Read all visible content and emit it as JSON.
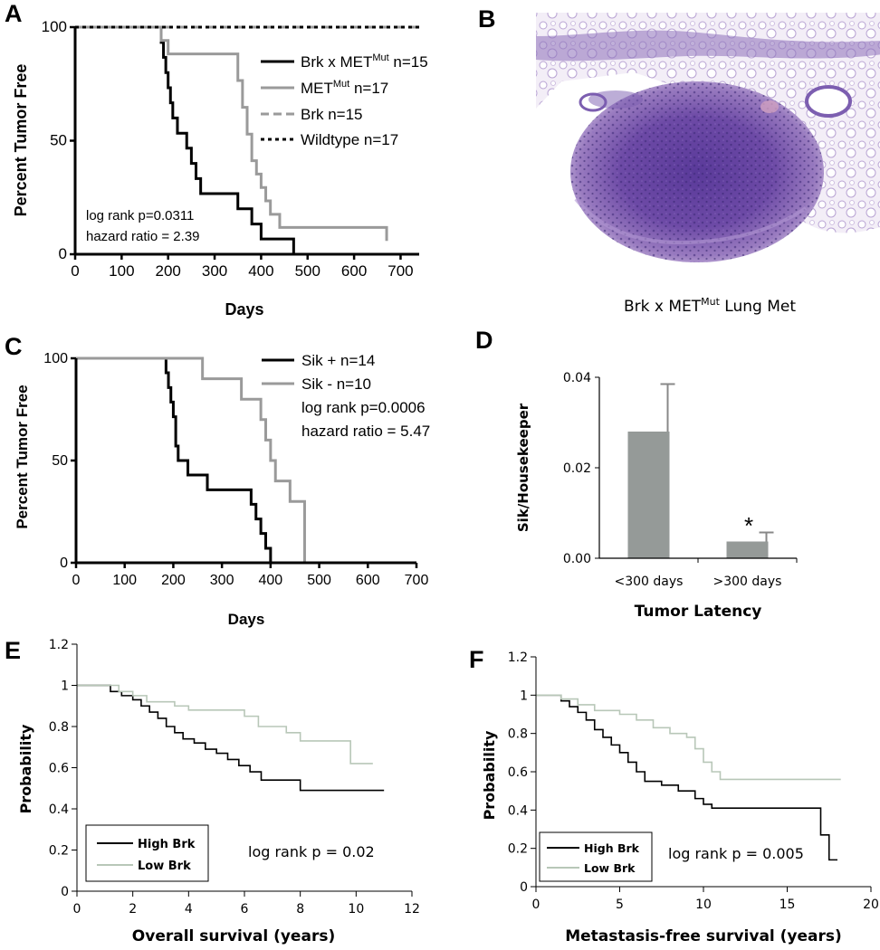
{
  "panel_letters": {
    "a": "A",
    "b": "B",
    "c": "C",
    "d": "D",
    "e": "E",
    "f": "F"
  },
  "colors": {
    "black": "#000000",
    "gray": "#9a9a9a",
    "light_gray": "#b8c7b8",
    "bar": "#959a98"
  },
  "panel_b": {
    "caption_main": "Brk x MET",
    "caption_sup": "Mut",
    "caption_tail": " Lung Met",
    "image_alt": "H&E stained lung section with metastatic tumor"
  },
  "chart_data": [
    {
      "id": "A",
      "type": "line",
      "step": true,
      "xlabel": "Days",
      "ylabel": "Percent Tumor Free",
      "xlim": [
        0,
        740
      ],
      "ylim": [
        0,
        100
      ],
      "xticks": [
        "0",
        "100",
        "200",
        "300",
        "400",
        "500",
        "600",
        "700"
      ],
      "yticks": [
        "0",
        "50",
        "100"
      ],
      "annotations": [
        "log rank p=0.0311",
        "hazard ratio = 2.39"
      ],
      "series": [
        {
          "name": "Brk x MET",
          "name_sup": "Mut",
          "name_tail": " n=15",
          "color": "#000000",
          "dash": "solid",
          "x": [
            0,
            185,
            190,
            195,
            200,
            205,
            210,
            220,
            240,
            250,
            260,
            270,
            290,
            350,
            380,
            400,
            470,
            470
          ],
          "y": [
            100,
            93.3,
            86.7,
            80,
            73.3,
            66.7,
            60,
            53.3,
            46.7,
            40,
            33.3,
            26.7,
            26.7,
            20,
            13.3,
            6.7,
            6.7,
            0
          ]
        },
        {
          "name": "MET",
          "name_sup": "Mut",
          "name_tail": " n=17",
          "color": "#9a9a9a",
          "dash": "solid",
          "x": [
            0,
            185,
            200,
            310,
            350,
            360,
            370,
            380,
            390,
            400,
            410,
            420,
            440,
            670
          ],
          "y": [
            100,
            94.1,
            88.2,
            88.2,
            76.5,
            64.7,
            52.9,
            41.2,
            35.3,
            29.4,
            23.5,
            17.6,
            11.8,
            5.9
          ]
        },
        {
          "name": "Brk n=15",
          "name_sup": "",
          "name_tail": "",
          "color": "#9a9a9a",
          "dash": "dash",
          "x": [
            0,
            740
          ],
          "y": [
            100,
            100
          ]
        },
        {
          "name": "Wildtype n=17",
          "name_sup": "",
          "name_tail": "",
          "color": "#000000",
          "dash": "dot",
          "x": [
            0,
            740
          ],
          "y": [
            100,
            100
          ]
        }
      ]
    },
    {
      "id": "C",
      "type": "line",
      "step": true,
      "xlabel": "Days",
      "ylabel": "Percent Tumor Free",
      "xlim": [
        0,
        700
      ],
      "ylim": [
        0,
        100
      ],
      "xticks": [
        "0",
        "100",
        "200",
        "300",
        "400",
        "500",
        "600",
        "700"
      ],
      "yticks": [
        "0",
        "50",
        "100"
      ],
      "annotations": [
        "log rank p=0.0006",
        "hazard ratio = 5.47"
      ],
      "series": [
        {
          "name": "Sik + n=14",
          "color": "#000000",
          "dash": "solid",
          "x": [
            0,
            185,
            190,
            195,
            200,
            205,
            210,
            230,
            270,
            360,
            370,
            380,
            390,
            400,
            400
          ],
          "y": [
            100,
            92.9,
            85.7,
            78.6,
            71.4,
            57.1,
            50,
            42.9,
            35.7,
            28.6,
            21.4,
            14.3,
            7.1,
            0,
            0
          ]
        },
        {
          "name": "Sik - n=10",
          "color": "#9a9a9a",
          "dash": "solid",
          "x": [
            0,
            260,
            340,
            380,
            390,
            400,
            410,
            440,
            470,
            470
          ],
          "y": [
            100,
            90,
            80,
            70,
            60,
            50,
            40,
            30,
            20,
            0
          ]
        }
      ]
    },
    {
      "id": "D",
      "type": "bar",
      "xlabel": "Tumor Latency",
      "ylabel": "Sik/Housekeeper",
      "categories": [
        "<300 days",
        ">300 days"
      ],
      "values": [
        0.028,
        0.0037
      ],
      "errors": [
        0.0105,
        0.002
      ],
      "ylim": [
        0,
        0.04
      ],
      "yticks": [
        "0.00",
        "0.02",
        "0.04"
      ],
      "annotations": [
        "*"
      ]
    },
    {
      "id": "E",
      "type": "line",
      "step": true,
      "xlabel": "Overall survival (years)",
      "ylabel": "Probability",
      "xlim": [
        0,
        12
      ],
      "ylim": [
        0,
        1.2
      ],
      "xticks": [
        "0",
        "2",
        "4",
        "6",
        "8",
        "10",
        "12"
      ],
      "yticks": [
        "0",
        "0.2",
        "0.4",
        "0.6",
        "0.8",
        "1",
        "1.2"
      ],
      "annotations": [
        "log rank p = 0.02"
      ],
      "series": [
        {
          "name": "High Brk",
          "color": "#000000",
          "x": [
            0,
            1.2,
            1.6,
            2,
            2.3,
            2.6,
            2.9,
            3.2,
            3.5,
            3.8,
            4.2,
            4.6,
            5,
            5.4,
            5.8,
            6.2,
            6.6,
            8,
            11
          ],
          "y": [
            1,
            0.97,
            0.95,
            0.93,
            0.9,
            0.87,
            0.84,
            0.8,
            0.77,
            0.74,
            0.72,
            0.69,
            0.67,
            0.64,
            0.61,
            0.58,
            0.54,
            0.49,
            0.49
          ]
        },
        {
          "name": "Low Brk",
          "color": "#b8c7b8",
          "x": [
            0,
            1.5,
            2,
            2.5,
            3.5,
            4,
            6,
            6.5,
            7.5,
            8,
            9.8,
            10.6
          ],
          "y": [
            1,
            0.97,
            0.95,
            0.92,
            0.9,
            0.88,
            0.85,
            0.8,
            0.77,
            0.73,
            0.62,
            0.62
          ]
        }
      ]
    },
    {
      "id": "F",
      "type": "line",
      "step": true,
      "xlabel": "Metastasis-free survival (years)",
      "ylabel": "Probability",
      "xlim": [
        0,
        20
      ],
      "ylim": [
        0,
        1.2
      ],
      "xticks": [
        "0",
        "5",
        "10",
        "15",
        "20"
      ],
      "yticks": [
        "0",
        "0.2",
        "0.4",
        "0.6",
        "0.8",
        "1",
        "1.2"
      ],
      "annotations": [
        "log rank p = 0.005"
      ],
      "series": [
        {
          "name": "High Brk",
          "color": "#000000",
          "x": [
            0,
            1.5,
            2,
            2.5,
            3,
            3.5,
            4,
            4.5,
            5,
            5.5,
            6,
            6.5,
            7.5,
            8.5,
            9.5,
            10,
            10.5,
            17,
            17.5,
            18
          ],
          "y": [
            1,
            0.97,
            0.94,
            0.91,
            0.87,
            0.82,
            0.78,
            0.74,
            0.7,
            0.65,
            0.6,
            0.55,
            0.53,
            0.5,
            0.46,
            0.43,
            0.41,
            0.27,
            0.14,
            0.14
          ]
        },
        {
          "name": "Low Brk",
          "color": "#b8c7b8",
          "x": [
            0,
            1.5,
            2.5,
            3.5,
            5,
            6,
            7,
            8,
            9,
            9.5,
            10,
            10.5,
            11,
            18.2
          ],
          "y": [
            1,
            0.98,
            0.95,
            0.92,
            0.9,
            0.87,
            0.83,
            0.8,
            0.78,
            0.72,
            0.65,
            0.6,
            0.56,
            0.56
          ]
        }
      ]
    }
  ]
}
